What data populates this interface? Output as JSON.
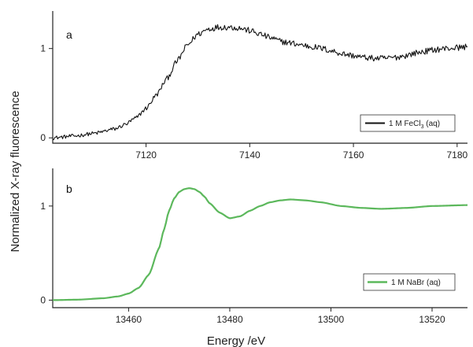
{
  "chart_data": [
    {
      "type": "line",
      "panel_label": "a",
      "xlim": [
        7102,
        7182
      ],
      "ylim": [
        -0.06,
        1.42
      ],
      "x_ticks": [
        7120,
        7140,
        7160,
        7180
      ],
      "x_tick_labels": [
        "7120",
        "7140",
        "7160",
        "7180"
      ],
      "y_ticks": [
        0,
        1
      ],
      "y_tick_labels": [
        "0",
        "1"
      ],
      "grid": false,
      "legend_position": "bottom-right",
      "series": [
        {
          "name": "1 M FeCl3 (aq)",
          "legend_main": "1 M FeCl",
          "legend_sub": "3",
          "legend_tail": " (aq)",
          "color": "#111111",
          "noise": 0.035,
          "x": [
            7102,
            7106,
            7110,
            7114,
            7116,
            7118,
            7120,
            7122,
            7124,
            7126,
            7128,
            7130,
            7132,
            7134,
            7136,
            7138,
            7140,
            7142,
            7144,
            7146,
            7148,
            7150,
            7152,
            7154,
            7156,
            7158,
            7160,
            7162,
            7164,
            7166,
            7168,
            7170,
            7172,
            7174,
            7176,
            7178,
            7180,
            7182
          ],
          "y": [
            0.0,
            0.02,
            0.05,
            0.1,
            0.15,
            0.22,
            0.33,
            0.48,
            0.66,
            0.86,
            1.04,
            1.16,
            1.22,
            1.24,
            1.24,
            1.23,
            1.2,
            1.16,
            1.12,
            1.08,
            1.06,
            1.04,
            1.02,
            1.0,
            0.97,
            0.94,
            0.92,
            0.9,
            0.89,
            0.89,
            0.9,
            0.92,
            0.95,
            0.97,
            0.99,
            1.0,
            1.01,
            1.02
          ]
        }
      ]
    },
    {
      "type": "line",
      "panel_label": "b",
      "xlim": [
        13445,
        13527
      ],
      "ylim": [
        -0.08,
        1.4
      ],
      "x_ticks": [
        13460,
        13480,
        13500,
        13520
      ],
      "x_tick_labels": [
        "13460",
        "13480",
        "13500",
        "13520"
      ],
      "y_ticks": [
        0,
        1
      ],
      "y_tick_labels": [
        "0",
        "1"
      ],
      "grid": false,
      "legend_position": "bottom-right",
      "series": [
        {
          "name": "1 M NaBr (aq)",
          "legend_main": "1 M NaBr (aq)",
          "legend_sub": "",
          "legend_tail": "",
          "color": "#5cb85c",
          "noise": 0,
          "x": [
            13445,
            13450,
            13455,
            13458,
            13460,
            13462,
            13464,
            13466,
            13467,
            13468,
            13469,
            13470,
            13471,
            13472,
            13473,
            13474,
            13475,
            13476,
            13478,
            13480,
            13482,
            13484,
            13486,
            13488,
            13490,
            13492,
            13495,
            13498,
            13502,
            13506,
            13510,
            13515,
            13520,
            13527
          ],
          "y": [
            0.0,
            0.005,
            0.02,
            0.04,
            0.07,
            0.13,
            0.27,
            0.55,
            0.75,
            0.95,
            1.08,
            1.15,
            1.18,
            1.19,
            1.18,
            1.15,
            1.1,
            1.03,
            0.93,
            0.87,
            0.89,
            0.95,
            1.0,
            1.04,
            1.06,
            1.07,
            1.06,
            1.04,
            1.0,
            0.98,
            0.97,
            0.98,
            1.0,
            1.01
          ]
        }
      ]
    }
  ],
  "shared": {
    "xlabel": "Energy /eV",
    "ylabel": "Normalized X-ray fluorescence"
  }
}
